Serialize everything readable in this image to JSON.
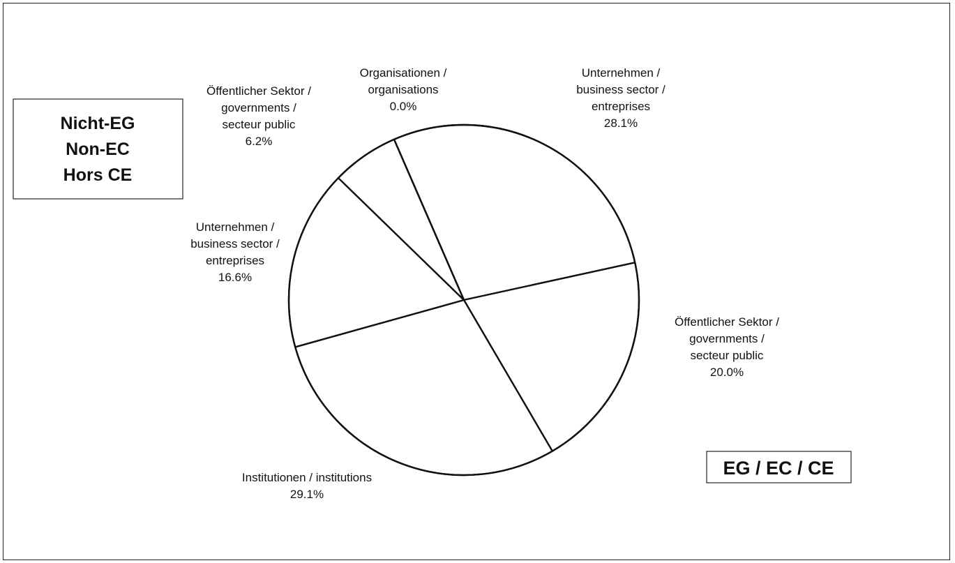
{
  "chart_data": {
    "type": "pie",
    "title": "",
    "boxes": {
      "non_ec": [
        "Nicht-EG",
        "Non-EC",
        "Hors CE"
      ],
      "ec": "EG / EC / CE"
    },
    "slices": [
      {
        "group": "ec",
        "label": [
          "Unternehmen /",
          "business sector /",
          "entreprises"
        ],
        "value": 28.1,
        "value_label": "28.1%"
      },
      {
        "group": "ec",
        "label": [
          "Öffentlicher Sektor /",
          "governments /",
          "secteur public"
        ],
        "value": 20.0,
        "value_label": "20.0%"
      },
      {
        "group": "ec",
        "label": [
          "Institutionen / institutions"
        ],
        "value": 29.1,
        "value_label": "29.1%"
      },
      {
        "group": "non_ec",
        "label": [
          "Unternehmen /",
          "business sector /",
          "entreprises"
        ],
        "value": 16.6,
        "value_label": "16.6%"
      },
      {
        "group": "non_ec",
        "label": [
          "Öffentlicher Sektor /",
          "governments /",
          "secteur public"
        ],
        "value": 6.2,
        "value_label": "6.2%"
      },
      {
        "group": "non_ec",
        "label": [
          "Organisationen /",
          "organisations"
        ],
        "value": 0.0,
        "value_label": "0.0%"
      }
    ],
    "legend": "none"
  }
}
